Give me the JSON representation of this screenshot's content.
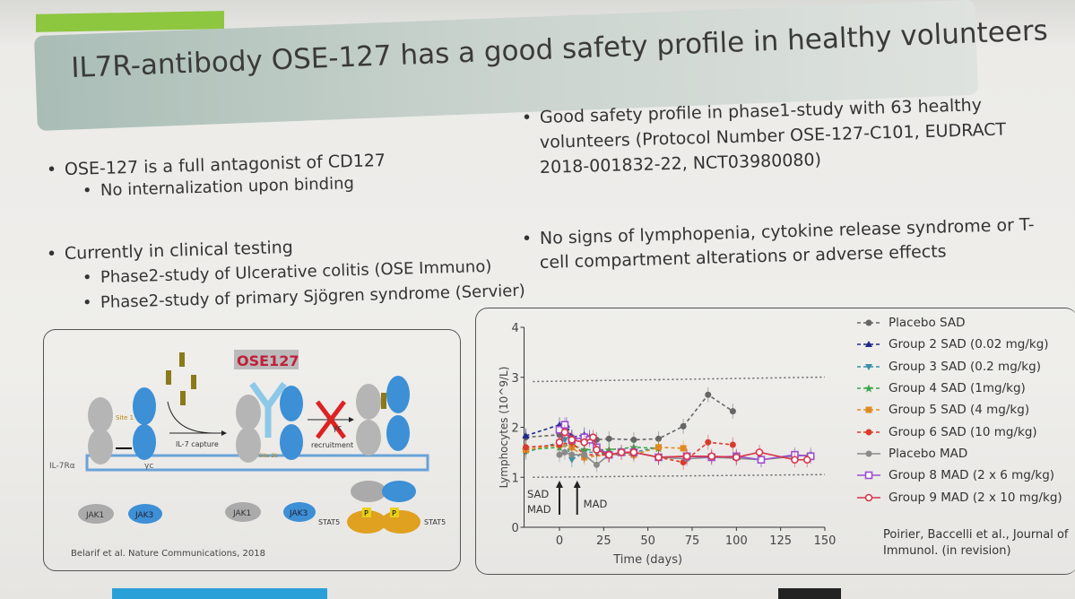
{
  "slide": {
    "title": "IL7R-antibody OSE-127 has a good safety profile in healthy volunteers",
    "accent_color": "#8dc63f",
    "left_bullets": [
      {
        "text": "OSE-127 is a full antagonist of CD127",
        "sub": [
          "No internalization upon binding"
        ]
      },
      {
        "text": "Currently in clinical testing",
        "sub": [
          "Phase2-study of Ulcerative colitis (OSE Immuno)",
          "Phase2-study of primary Sjögren syndrome (Servier)"
        ]
      }
    ],
    "right_bullets": [
      {
        "lines": [
          "Good safety profile in phase1-study with 63 healthy",
          "volunteers (Protocol Number OSE-127-C101, EUDRACT",
          "2018-001832-22, NCT03980080)"
        ]
      },
      {
        "lines": [
          "No signs of lymphopenia, cytokine release syndrome or T-",
          "cell compartment alterations or adverse effects"
        ]
      }
    ]
  },
  "diagram": {
    "drug_label": "OSE127",
    "labels": {
      "site1": "Site 1",
      "il7_capture": "IL-7 capture",
      "site2b": "Site 2b",
      "il7ra": "IL-7Rα",
      "gc": "γc",
      "gc_recruitment_1": "γc",
      "gc_recruitment_2": "recruitment",
      "jak1": "JAK1",
      "jak3": "JAK3",
      "p": "P",
      "stat5": "STAT5"
    },
    "citation": "Belarif et al. Nature Communications, 2018"
  },
  "chart_data": {
    "type": "line",
    "xlabel": "Time (days)",
    "ylabel": "Lymphocytes (10^9/L)",
    "xlim": [
      -20,
      150
    ],
    "ylim": [
      0,
      4
    ],
    "xticks": [
      "0",
      "25",
      "50",
      "75",
      "100",
      "125",
      "150"
    ],
    "yticks": [
      "0",
      "1",
      "2",
      "3",
      "4"
    ],
    "reference_lines": [
      1.0,
      2.95
    ],
    "annotations": [
      "SAD",
      "MAD",
      "MAD"
    ],
    "legend_position": "right",
    "series": [
      {
        "name": "Placebo SAD",
        "color": "#666666",
        "marker": "circle",
        "dash": true,
        "x": [
          -19,
          0,
          3,
          7,
          14,
          21,
          28,
          42,
          56,
          70,
          84,
          98
        ],
        "y": [
          1.8,
          1.85,
          1.9,
          1.8,
          1.75,
          1.75,
          1.77,
          1.75,
          1.77,
          2.02,
          2.65,
          2.32
        ]
      },
      {
        "name": "Group 2 SAD (0.02 mg/kg)",
        "color": "#1f2a8c",
        "marker": "triangle",
        "dash": true,
        "x": [
          -19,
          0,
          2,
          4,
          7,
          14,
          17
        ],
        "y": [
          1.83,
          2.05,
          1.95,
          2.05,
          1.8,
          1.85,
          1.8
        ]
      },
      {
        "name": "Group 3 SAD (0.2 mg/kg)",
        "color": "#3a8fa8",
        "marker": "triangle-down",
        "dash": true,
        "x": [
          -19,
          0,
          3,
          7,
          14,
          21,
          28,
          42,
          56
        ],
        "y": [
          1.5,
          1.7,
          1.75,
          1.35,
          1.5,
          1.5,
          1.45,
          1.5,
          1.6
        ]
      },
      {
        "name": "Group 4 SAD (1mg/kg)",
        "color": "#3aa64a",
        "marker": "star",
        "dash": true,
        "x": [
          -19,
          0,
          7,
          14,
          28,
          42,
          56
        ],
        "y": [
          1.55,
          1.6,
          1.65,
          1.55,
          1.55,
          1.6,
          1.58
        ]
      },
      {
        "name": "Group 5 SAD (4 mg/kg)",
        "color": "#e08a1e",
        "marker": "square",
        "dash": true,
        "x": [
          -19,
          0,
          7,
          14,
          28,
          42,
          56,
          70
        ],
        "y": [
          1.55,
          1.65,
          1.6,
          1.4,
          1.45,
          1.45,
          1.6,
          1.58
        ]
      },
      {
        "name": "Group 6 SAD (10 mg/kg)",
        "color": "#d93a2b",
        "marker": "circle",
        "dash": true,
        "x": [
          -19,
          0,
          7,
          14,
          28,
          42,
          56,
          70,
          84,
          98
        ],
        "y": [
          1.6,
          1.65,
          1.7,
          1.45,
          1.45,
          1.5,
          1.4,
          1.3,
          1.7,
          1.65
        ]
      },
      {
        "name": "Placebo MAD",
        "color": "#8a8a8a",
        "marker": "circle",
        "dash": false,
        "x": [
          0,
          3,
          7,
          14,
          21,
          28,
          42,
          56,
          72,
          86,
          100,
          114,
          133,
          142
        ],
        "y": [
          1.45,
          1.5,
          1.45,
          1.45,
          1.25,
          1.45,
          1.5,
          1.4,
          1.37,
          1.4,
          1.38,
          1.35,
          1.42,
          1.45
        ]
      },
      {
        "name": "Group 8 MAD (2 x 6 mg/kg)",
        "color": "#9b4fd0",
        "marker": "open-square",
        "dash": false,
        "x": [
          0,
          3,
          7,
          14,
          17,
          21,
          28,
          35,
          42,
          56,
          72,
          86,
          100,
          114,
          133,
          142
        ],
        "y": [
          1.95,
          2.05,
          1.75,
          1.8,
          1.75,
          1.6,
          1.45,
          1.5,
          1.5,
          1.4,
          1.42,
          1.4,
          1.42,
          1.35,
          1.45,
          1.42
        ]
      },
      {
        "name": "Group 9 MAD (2 x 10 mg/kg)",
        "color": "#d9364a",
        "marker": "open-circle",
        "dash": false,
        "x": [
          0,
          3,
          7,
          14,
          19,
          21,
          28,
          35,
          42,
          56,
          72,
          86,
          100,
          113,
          133,
          140
        ],
        "y": [
          1.7,
          1.9,
          1.75,
          1.7,
          1.8,
          1.55,
          1.45,
          1.5,
          1.5,
          1.4,
          1.42,
          1.42,
          1.4,
          1.5,
          1.35,
          1.35
        ]
      }
    ]
  },
  "source": {
    "line1": "Poirier, Baccelli et al., Journal of",
    "line2": "Immunol. (in revision)"
  }
}
